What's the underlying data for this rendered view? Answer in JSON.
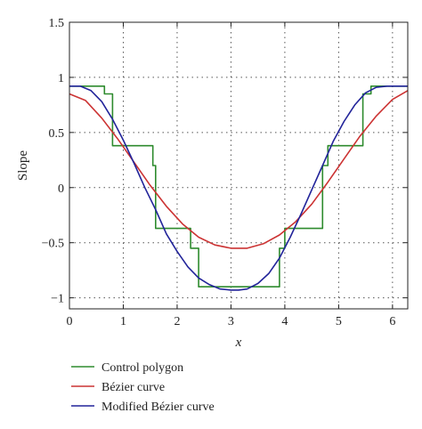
{
  "chart_data": {
    "type": "line",
    "title": "",
    "xlabel": "x",
    "ylabel": "Slope",
    "xlim": [
      0,
      6.2832
    ],
    "ylim": [
      -1.1,
      1.5
    ],
    "x_ticks": [
      0,
      1,
      2,
      3,
      4,
      5,
      6
    ],
    "x_tick_labels": [
      "0",
      "1",
      "2",
      "3",
      "4",
      "5",
      "6"
    ],
    "y_ticks": [
      -1,
      -0.5,
      0,
      0.5,
      1,
      1.5
    ],
    "y_tick_labels": [
      "−1",
      "−0.5",
      "0",
      "0.5",
      "1",
      "1.5"
    ],
    "grid": true,
    "legend_position": "bottom-left, below plot",
    "series": [
      {
        "name": "Control polygon",
        "color": "#2e8b2e",
        "style": "step",
        "x": [
          0,
          0.65,
          0.65,
          0.8,
          0.8,
          1.55,
          1.55,
          1.6,
          1.6,
          2.25,
          2.25,
          2.4,
          2.4,
          3.9,
          3.9,
          4.0,
          4.0,
          4.7,
          4.7,
          4.8,
          4.8,
          5.45,
          5.45,
          5.6,
          5.6,
          6.2832
        ],
        "y": [
          0.92,
          0.92,
          0.85,
          0.85,
          0.38,
          0.38,
          0.2,
          0.2,
          -0.37,
          -0.37,
          -0.55,
          -0.55,
          -0.9,
          -0.9,
          -0.55,
          -0.55,
          -0.37,
          -0.37,
          0.2,
          0.2,
          0.38,
          0.38,
          0.85,
          0.85,
          0.92,
          0.92
        ]
      },
      {
        "name": "Bézier curve",
        "color": "#cc3333",
        "style": "line",
        "x": [
          0,
          0.3,
          0.6,
          0.9,
          1.2,
          1.5,
          1.8,
          2.1,
          2.4,
          2.7,
          3.0,
          3.1416,
          3.3,
          3.6,
          3.9,
          4.2,
          4.5,
          4.8,
          5.1,
          5.4,
          5.7,
          6.0,
          6.2832
        ],
        "y": [
          0.85,
          0.79,
          0.63,
          0.44,
          0.23,
          0.02,
          -0.17,
          -0.33,
          -0.45,
          -0.52,
          -0.55,
          -0.55,
          -0.55,
          -0.51,
          -0.43,
          -0.31,
          -0.15,
          0.05,
          0.26,
          0.47,
          0.65,
          0.8,
          0.88
        ]
      },
      {
        "name": "Modified Bézier curve",
        "color": "#22249a",
        "style": "line",
        "x": [
          0,
          0.2,
          0.4,
          0.6,
          0.8,
          1.0,
          1.2,
          1.4,
          1.6,
          1.8,
          2.0,
          2.2,
          2.4,
          2.6,
          2.8,
          3.0,
          3.1416,
          3.3,
          3.5,
          3.7,
          3.9,
          4.1,
          4.3,
          4.5,
          4.7,
          4.9,
          5.1,
          5.3,
          5.5,
          5.7,
          5.9,
          6.1,
          6.2832
        ],
        "y": [
          0.92,
          0.92,
          0.88,
          0.78,
          0.62,
          0.43,
          0.22,
          0.0,
          -0.2,
          -0.42,
          -0.58,
          -0.72,
          -0.82,
          -0.88,
          -0.92,
          -0.93,
          -0.93,
          -0.92,
          -0.87,
          -0.78,
          -0.64,
          -0.45,
          -0.24,
          -0.02,
          0.2,
          0.42,
          0.6,
          0.75,
          0.86,
          0.91,
          0.92,
          0.92,
          0.92
        ]
      }
    ]
  }
}
